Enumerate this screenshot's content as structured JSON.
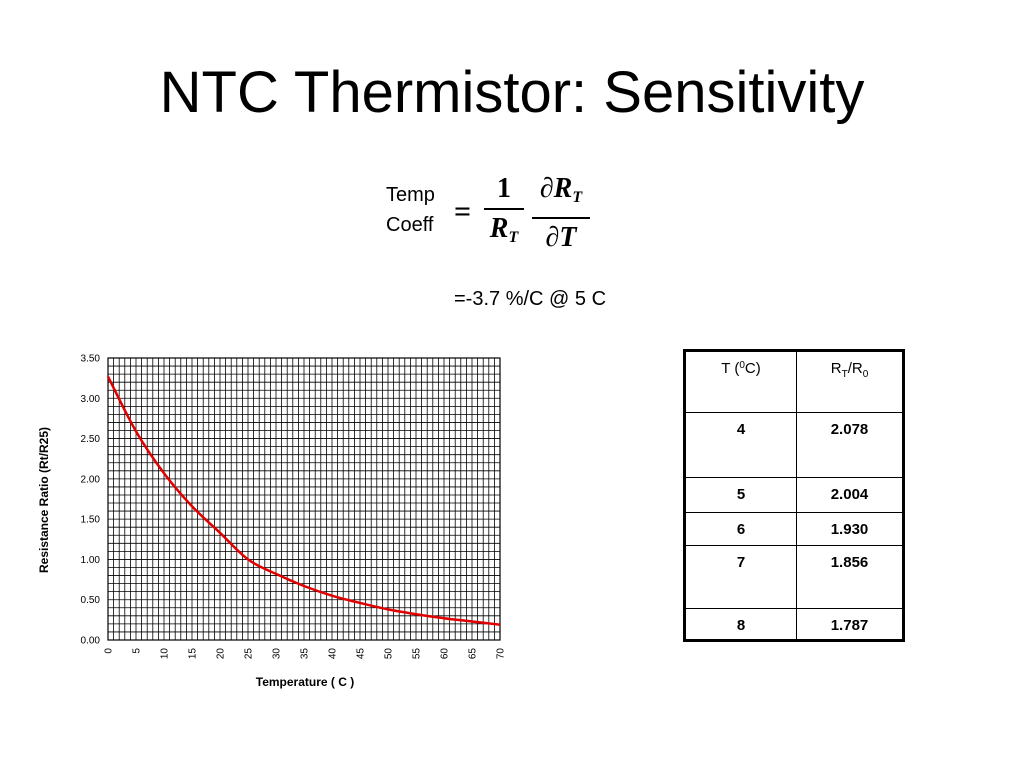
{
  "slide": {
    "title": "NTC Thermistor: Sensitivity"
  },
  "equation": {
    "label_line1": "Temp",
    "label_line2": "Coeff",
    "equals": "=",
    "frac1_num": "1",
    "frac1_den_R": "R",
    "frac1_den_sub": "T",
    "frac2_num_prefix": "∂R",
    "frac2_num_sub": "T",
    "frac2_den": "∂T",
    "result": "=-3.7 %/C @ 5 C"
  },
  "table": {
    "header_temp": "T (",
    "header_temp_sup": "0",
    "header_temp_suffix": "C)",
    "header_ratio_R": "R",
    "header_ratio_sub1": "T",
    "header_ratio_mid": "/R",
    "header_ratio_sub2": "0",
    "rows": [
      {
        "t": "4",
        "r": "2.078"
      },
      {
        "t": "5",
        "r": "2.004"
      },
      {
        "t": "6",
        "r": "1.930"
      },
      {
        "t": "7",
        "r": "1.856"
      },
      {
        "t": "8",
        "r": "1.787"
      }
    ]
  },
  "chart_data": {
    "type": "line",
    "title": "",
    "xlabel": "Temperature ( C )",
    "ylabel": "Resistance Ratio (Rt/R25)",
    "xlim": [
      0,
      70
    ],
    "ylim": [
      0,
      3.5
    ],
    "xticks": [
      "0",
      "5",
      "10",
      "15",
      "20",
      "25",
      "30",
      "35",
      "40",
      "45",
      "50",
      "55",
      "60",
      "65",
      "70"
    ],
    "yticks": [
      "0.00",
      "0.50",
      "1.00",
      "1.50",
      "2.00",
      "2.50",
      "3.00",
      "3.50"
    ],
    "grid": true,
    "colors": {
      "line": "#e00000",
      "grid": "#000000"
    },
    "series": [
      {
        "x": [
          0,
          5,
          10,
          15,
          20,
          25,
          30,
          35,
          40,
          45,
          50,
          55,
          60,
          65,
          70
        ],
        "y": [
          3.27,
          2.59,
          2.07,
          1.66,
          1.33,
          1.0,
          0.82,
          0.67,
          0.55,
          0.46,
          0.38,
          0.32,
          0.27,
          0.23,
          0.19
        ]
      }
    ]
  }
}
